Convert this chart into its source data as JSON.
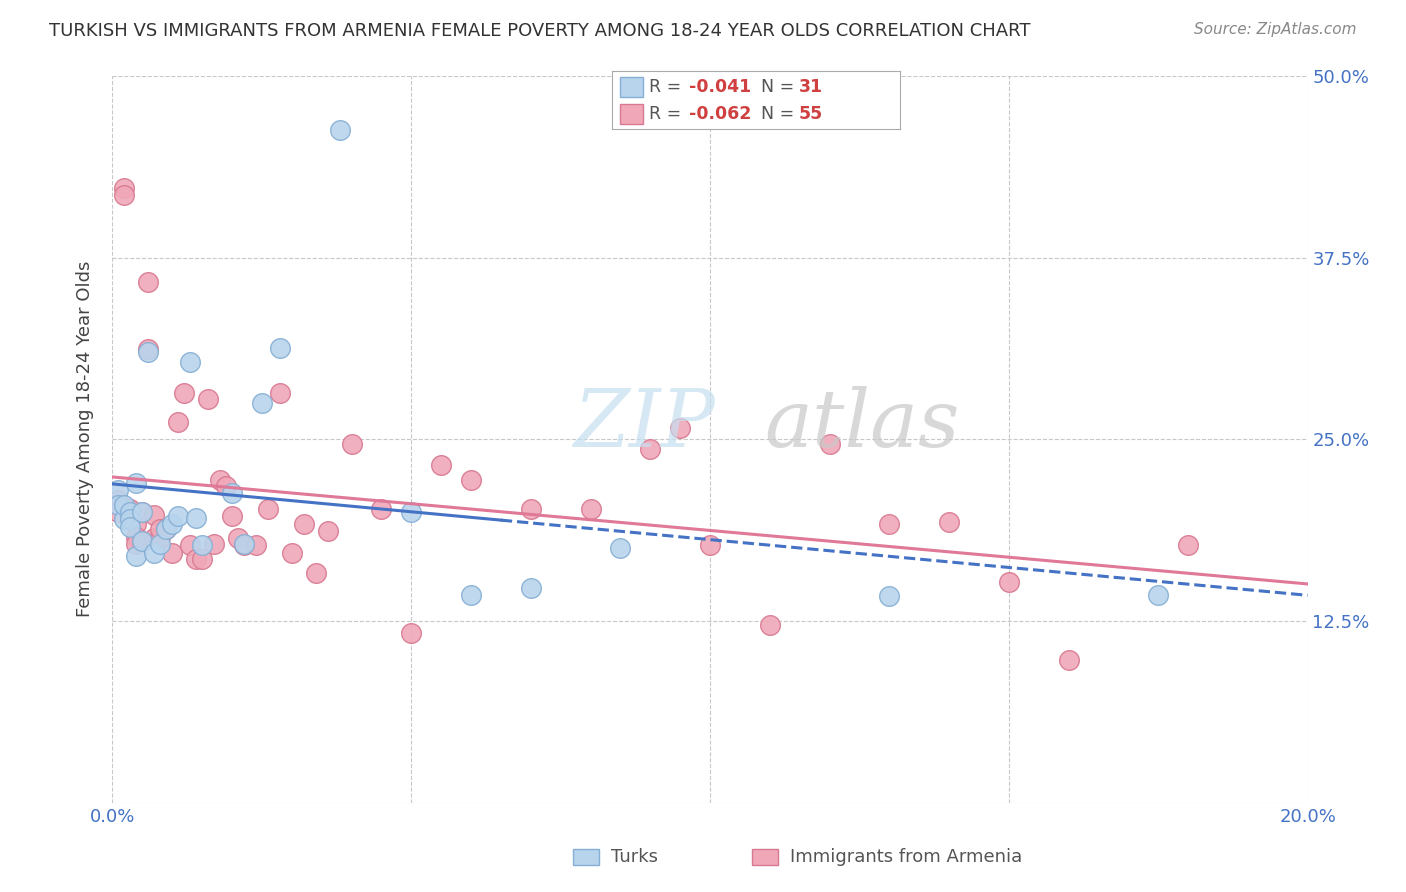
{
  "title": "TURKISH VS IMMIGRANTS FROM ARMENIA FEMALE POVERTY AMONG 18-24 YEAR OLDS CORRELATION CHART",
  "source": "Source: ZipAtlas.com",
  "ylabel": "Female Poverty Among 18-24 Year Olds",
  "xlim": [
    0.0,
    0.2
  ],
  "ylim": [
    0.0,
    0.5
  ],
  "yticks": [
    0.0,
    0.125,
    0.25,
    0.375,
    0.5
  ],
  "yticklabels": [
    "",
    "12.5%",
    "25.0%",
    "37.5%",
    "50.0%"
  ],
  "background_color": "#ffffff",
  "grid_color": "#c8c8c8",
  "turks_color": "#b8d4ed",
  "turks_edge_color": "#85afd4",
  "armenia_color": "#f0a8b8",
  "armenia_edge_color": "#d87890",
  "turks_line_color": "#4472c4",
  "armenia_line_color": "#e07898",
  "turks_R": -0.041,
  "turks_N": 31,
  "armenia_R": -0.062,
  "armenia_N": 55,
  "legend_label_turks": "Turks",
  "legend_label_armenia": "Immigrants from Armenia",
  "turks_x": [
    0.001,
    0.001,
    0.002,
    0.002,
    0.003,
    0.003,
    0.003,
    0.004,
    0.004,
    0.005,
    0.005,
    0.006,
    0.007,
    0.008,
    0.009,
    0.01,
    0.011,
    0.013,
    0.014,
    0.015,
    0.02,
    0.022,
    0.025,
    0.028,
    0.038,
    0.05,
    0.06,
    0.07,
    0.085,
    0.13,
    0.175
  ],
  "turks_y": [
    0.215,
    0.205,
    0.195,
    0.205,
    0.2,
    0.195,
    0.19,
    0.22,
    0.17,
    0.2,
    0.18,
    0.31,
    0.172,
    0.178,
    0.188,
    0.192,
    0.197,
    0.303,
    0.196,
    0.177,
    0.213,
    0.178,
    0.275,
    0.313,
    0.463,
    0.2,
    0.143,
    0.148,
    0.175,
    0.142,
    0.143
  ],
  "armenia_x": [
    0.001,
    0.001,
    0.002,
    0.002,
    0.003,
    0.003,
    0.004,
    0.004,
    0.004,
    0.005,
    0.005,
    0.006,
    0.006,
    0.007,
    0.007,
    0.008,
    0.008,
    0.009,
    0.01,
    0.011,
    0.012,
    0.013,
    0.014,
    0.015,
    0.016,
    0.017,
    0.018,
    0.019,
    0.02,
    0.021,
    0.022,
    0.024,
    0.026,
    0.028,
    0.03,
    0.032,
    0.034,
    0.036,
    0.04,
    0.045,
    0.05,
    0.055,
    0.06,
    0.07,
    0.08,
    0.09,
    0.095,
    0.1,
    0.11,
    0.12,
    0.13,
    0.14,
    0.15,
    0.16,
    0.18
  ],
  "armenia_y": [
    0.208,
    0.2,
    0.423,
    0.418,
    0.202,
    0.197,
    0.192,
    0.183,
    0.178,
    0.2,
    0.18,
    0.358,
    0.312,
    0.198,
    0.182,
    0.183,
    0.188,
    0.188,
    0.172,
    0.262,
    0.282,
    0.177,
    0.168,
    0.168,
    0.278,
    0.178,
    0.222,
    0.218,
    0.197,
    0.182,
    0.177,
    0.177,
    0.202,
    0.282,
    0.172,
    0.192,
    0.158,
    0.187,
    0.247,
    0.202,
    0.117,
    0.232,
    0.222,
    0.202,
    0.202,
    0.243,
    0.258,
    0.177,
    0.122,
    0.247,
    0.192,
    0.193,
    0.152,
    0.098,
    0.177
  ]
}
